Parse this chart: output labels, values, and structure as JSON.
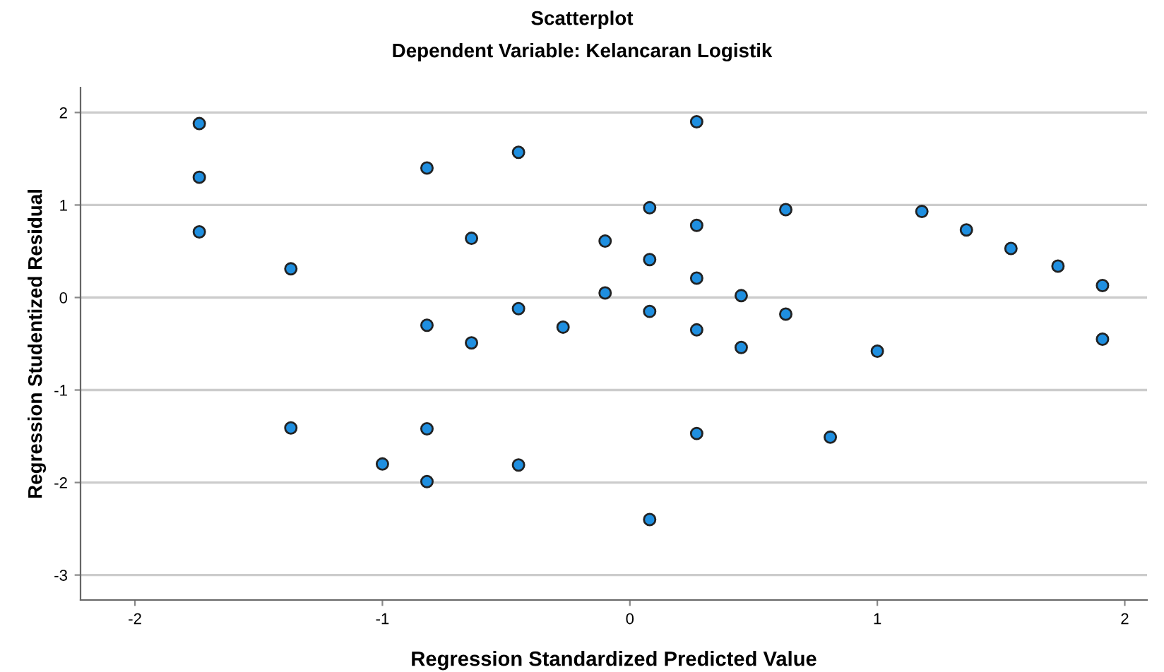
{
  "chart_data": {
    "type": "scatter",
    "title": "Scatterplot",
    "subtitle": "Dependent Variable: Kelancaran Logistik",
    "xlabel": "Regression Standardized Predicted Value",
    "ylabel": "Regression Studentized Residual",
    "series": [
      {
        "color": "#1f8fe0",
        "x": [
          -1.74,
          -1.74,
          -1.74,
          -1.37,
          -1.37,
          -1.0,
          -0.82,
          -0.82,
          -0.82,
          -0.82,
          -0.64,
          -0.64,
          -0.45,
          -0.45,
          -0.45,
          -0.27,
          -0.1,
          -0.1,
          0.08,
          0.08,
          0.08,
          0.08,
          0.27,
          0.27,
          0.27,
          0.27,
          0.27,
          0.45,
          0.45,
          0.63,
          0.63,
          0.81,
          1.0,
          1.18,
          1.36,
          1.54,
          1.73,
          1.91,
          1.91
        ],
        "values": [
          1.88,
          1.3,
          0.71,
          0.31,
          -1.41,
          -1.8,
          1.4,
          -0.3,
          -1.42,
          -1.99,
          0.64,
          -0.49,
          1.57,
          -0.12,
          -1.81,
          -0.32,
          0.61,
          0.05,
          0.97,
          0.41,
          -0.15,
          -2.4,
          1.9,
          0.78,
          0.21,
          -0.35,
          -1.47,
          0.02,
          -0.54,
          0.95,
          -0.18,
          -1.51,
          -0.58,
          0.93,
          0.73,
          0.53,
          0.34,
          0.13,
          -0.45
        ]
      }
    ],
    "marker": "circle",
    "grid": "y",
    "xlim": [
      -2.22,
      2.09
    ],
    "ylim": [
      -3.27,
      2.27
    ],
    "xticks": [
      -2,
      -1,
      0,
      1,
      2
    ],
    "yticks": [
      -3,
      -2,
      -1,
      0,
      1,
      2
    ]
  }
}
